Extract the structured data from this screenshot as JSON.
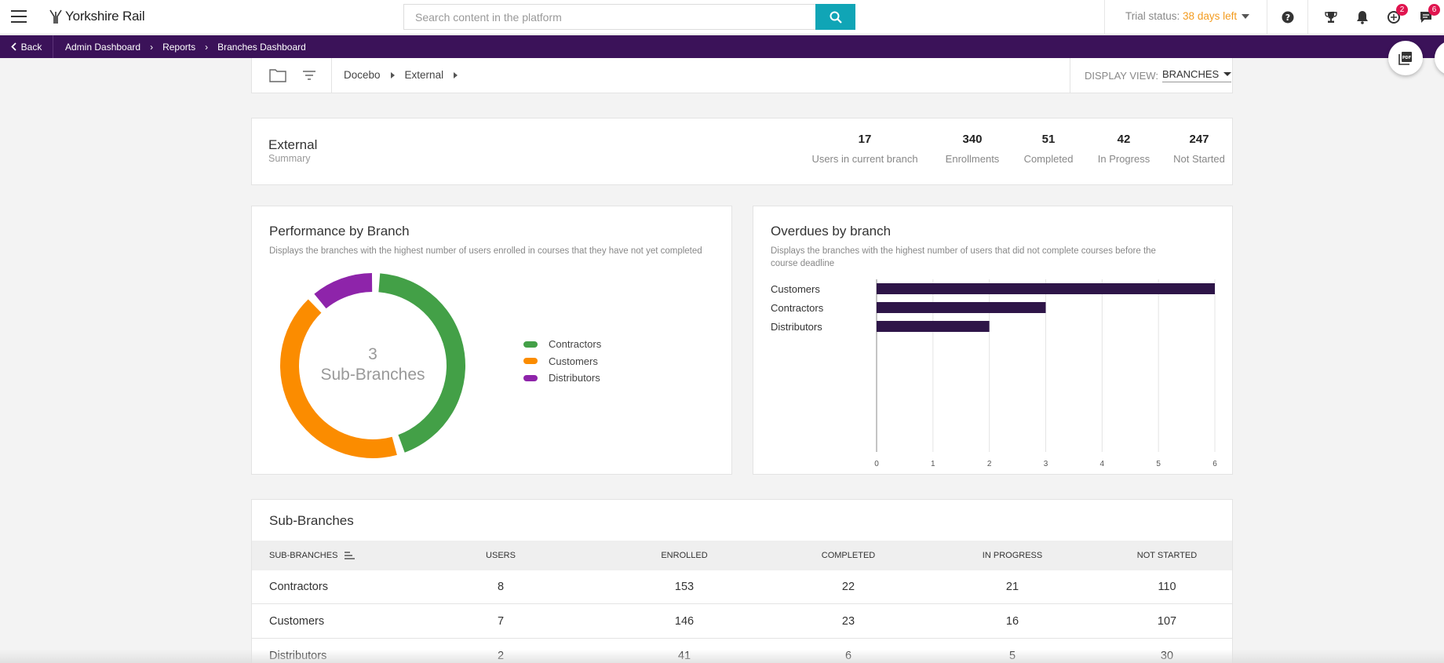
{
  "header": {
    "brand": "Yorkshire Rail",
    "search_placeholder": "Search content in the platform",
    "trial_prefix": "Trial status:",
    "trial_days": "38",
    "trial_suffix": "days left",
    "notif_badge_1": "2",
    "notif_badge_2": "6"
  },
  "breadcrumb_bar": {
    "back_label": "Back",
    "items": [
      "Admin Dashboard",
      "Reports",
      "Branches Dashboard"
    ]
  },
  "nav": {
    "path": [
      "Docebo",
      "External"
    ],
    "display_view_label": "DISPLAY VIEW:",
    "display_view_value": "BRANCHES"
  },
  "summary": {
    "title": "External",
    "subtitle": "Summary",
    "stats": [
      {
        "value": "17",
        "label": "Users in current branch"
      },
      {
        "value": "340",
        "label": "Enrollments"
      },
      {
        "value": "51",
        "label": "Completed"
      },
      {
        "value": "42",
        "label": "In Progress"
      },
      {
        "value": "247",
        "label": "Not Started"
      }
    ]
  },
  "performance": {
    "title": "Performance by Branch",
    "description": "Displays the branches with the highest number of users enrolled in courses that they have not yet completed",
    "center_number": "3",
    "center_label": "Sub-Branches",
    "legend": [
      {
        "name": "Contractors",
        "color": "#43a047"
      },
      {
        "name": "Customers",
        "color": "#fb8c00"
      },
      {
        "name": "Distributors",
        "color": "#8e24aa"
      }
    ]
  },
  "overdues": {
    "title": "Overdues by branch",
    "description_line1": "Displays the branches with the highest number of users that did not complete courses before the",
    "description_line2": "course deadline"
  },
  "chart_data": [
    {
      "type": "pie",
      "categories": [
        "Contractors",
        "Customers",
        "Distributors"
      ],
      "values": [
        110,
        107,
        30
      ],
      "colors": [
        "#43a047",
        "#fb8c00",
        "#8e24aa"
      ]
    },
    {
      "type": "bar",
      "orientation": "horizontal",
      "categories": [
        "Customers",
        "Contractors",
        "Distributors"
      ],
      "values": [
        6,
        3,
        2
      ],
      "color": "#2e1548",
      "xlim": [
        0,
        6
      ],
      "xticks": [
        "0",
        "1",
        "2",
        "3",
        "4",
        "5",
        "6"
      ],
      "grid": true
    }
  ],
  "subbranches": {
    "title": "Sub-Branches",
    "columns": [
      "SUB-BRANCHES",
      "USERS",
      "ENROLLED",
      "COMPLETED",
      "IN PROGRESS",
      "NOT STARTED"
    ],
    "rows": [
      [
        "Contractors",
        "8",
        "153",
        "22",
        "21",
        "110"
      ],
      [
        "Customers",
        "7",
        "146",
        "23",
        "16",
        "107"
      ],
      [
        "Distributors",
        "2",
        "41",
        "6",
        "5",
        "30"
      ]
    ]
  }
}
